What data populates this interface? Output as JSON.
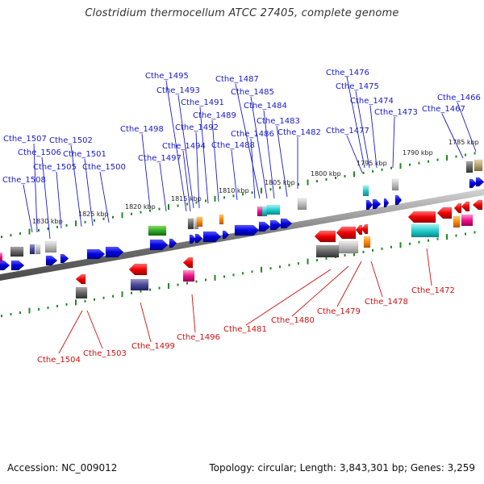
{
  "title": "Clostridium thermocellum ATCC 27405, complete genome",
  "footer": {
    "accession": "Accession: NC_009012",
    "summary": "Topology: circular; Length: 3,843,301 bp; Genes: 3,259"
  },
  "colors": {
    "forward_label": "#1a1ac8",
    "reverse_label": "#cc1111",
    "tick": "#228822",
    "backbone": "#7a7a7a"
  },
  "kbp_labels": [
    "1830 kbp",
    "1825 kbp",
    "1820 kbp",
    "1815 kbp",
    "1810 kbp",
    "1805 kbp",
    "1800 kbp",
    "1795 kbp",
    "1790 kbp",
    "1785 kbp"
  ],
  "forward_genes": [
    "Cthe_1508",
    "Cthe_1507",
    "Cthe_1506",
    "Cthe_1505",
    "Cthe_1502",
    "Cthe_1501",
    "Cthe_1500",
    "Cthe_1498",
    "Cthe_1497",
    "Cthe_1495",
    "Cthe_1494",
    "Cthe_1493",
    "Cthe_1492",
    "Cthe_1491",
    "Cthe_1489",
    "Cthe_1488",
    "Cthe_1487",
    "Cthe_1486",
    "Cthe_1485",
    "Cthe_1484",
    "Cthe_1483",
    "Cthe_1482",
    "Cthe_1477",
    "Cthe_1476",
    "Cthe_1475",
    "Cthe_1474",
    "Cthe_1473",
    "Cthe_1467",
    "Cthe_1466"
  ],
  "reverse_genes": [
    "Cthe_1504",
    "Cthe_1503",
    "Cthe_1499",
    "Cthe_1496",
    "Cthe_1481",
    "Cthe_1480",
    "Cthe_1479",
    "Cthe_1478",
    "Cthe_1472"
  ]
}
